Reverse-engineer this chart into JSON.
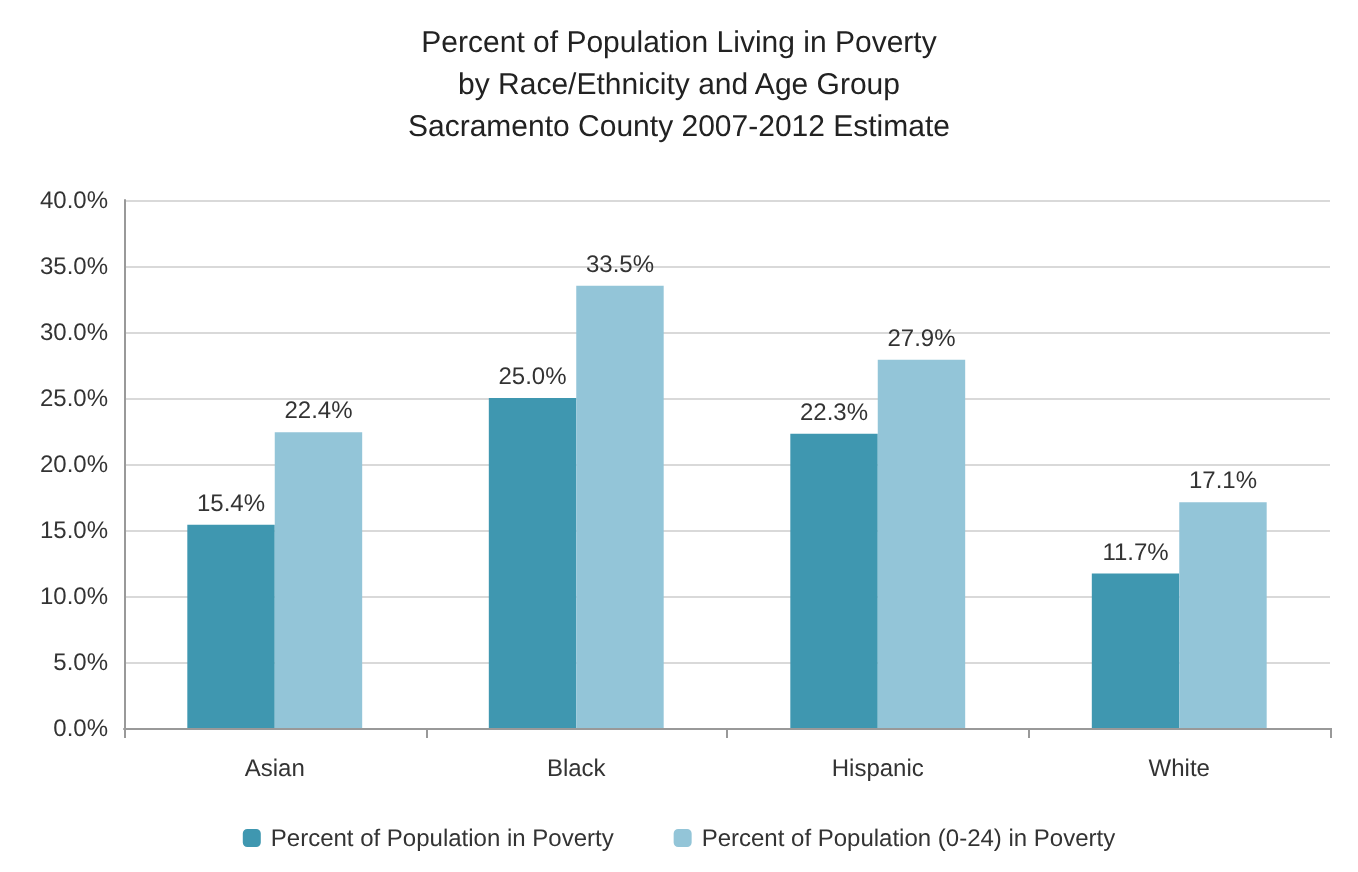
{
  "chart_data": {
    "type": "bar",
    "title": "Percent of Population Living in Poverty\nby Race/Ethnicity and Age Group\nSacramento County 2007-2012 Estimate",
    "categories": [
      "Asian",
      "Black",
      "Hispanic",
      "White"
    ],
    "series": [
      {
        "name": "Percent of Population in Poverty",
        "color": "#3f97b0",
        "values": [
          15.4,
          25.0,
          22.3,
          11.7
        ],
        "value_labels": [
          "15.4%",
          "25.0%",
          "22.3%",
          "11.7%"
        ]
      },
      {
        "name": "Percent of Population (0-24) in Poverty",
        "color": "#93c5d8",
        "values": [
          22.4,
          33.5,
          27.9,
          17.1
        ],
        "value_labels": [
          "22.4%",
          "33.5%",
          "27.9%",
          "17.1%"
        ]
      }
    ],
    "ylim": [
      0,
      40
    ],
    "yticks": [
      {
        "value": 0,
        "label": "0.0%"
      },
      {
        "value": 5,
        "label": "5.0%"
      },
      {
        "value": 10,
        "label": "10.0%"
      },
      {
        "value": 15,
        "label": "15.0%"
      },
      {
        "value": 20,
        "label": "20.0%"
      },
      {
        "value": 25,
        "label": "25.0%"
      },
      {
        "value": 30,
        "label": "30.0%"
      },
      {
        "value": 35,
        "label": "35.0%"
      },
      {
        "value": 40,
        "label": "40.0%"
      }
    ],
    "grid": "y",
    "legend": "bottom"
  }
}
